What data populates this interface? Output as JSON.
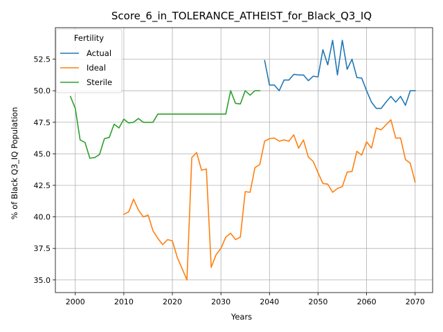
{
  "chart_data": {
    "type": "line",
    "title": "Score_6_in_TOLERANCE_ATHEIST_for_Black_Q3_IQ",
    "xlabel": "Years",
    "ylabel": "% of Black Q3_IQ Population",
    "xlim": [
      1995.9,
      2073.6
    ],
    "ylim": [
      34.0,
      55.0
    ],
    "xticks": [
      2000,
      2010,
      2020,
      2030,
      2040,
      2050,
      2060,
      2070
    ],
    "yticks": [
      35.0,
      37.5,
      40.0,
      42.5,
      45.0,
      47.5,
      50.0,
      52.5
    ],
    "xtick_labels": [
      "2000",
      "2010",
      "2020",
      "2030",
      "2040",
      "2050",
      "2060",
      "2070"
    ],
    "ytick_labels": [
      "35.0",
      "37.5",
      "40.0",
      "42.5",
      "45.0",
      "47.5",
      "50.0",
      "52.5"
    ],
    "grid": true,
    "legend": {
      "title": "Fertility",
      "placement": "upper-left"
    },
    "series": [
      {
        "name": "Actual",
        "color": "#1f77b4",
        "x": [
          2039,
          2040,
          2041,
          2042,
          2043,
          2044,
          2045,
          2046,
          2047,
          2048,
          2049,
          2050,
          2051,
          2052,
          2053,
          2054,
          2055,
          2056,
          2057,
          2058,
          2059,
          2060,
          2061,
          2062,
          2063,
          2064,
          2065,
          2066,
          2067,
          2068,
          2069,
          2070
        ],
        "y": [
          52.4,
          50.45,
          50.45,
          50.0,
          50.85,
          50.85,
          51.3,
          51.25,
          51.25,
          50.8,
          51.15,
          51.1,
          53.25,
          52.05,
          54.0,
          51.25,
          54.0,
          51.7,
          52.5,
          51.05,
          51.0,
          50.0,
          49.1,
          48.6,
          48.6,
          49.1,
          49.55,
          49.1,
          49.55,
          48.85,
          50.0,
          50.0
        ]
      },
      {
        "name": "Ideal",
        "color": "#ff7f0e",
        "x": [
          2010,
          2011,
          2012,
          2013,
          2014,
          2015,
          2016,
          2017,
          2018,
          2019,
          2020,
          2021,
          2022,
          2023,
          2024,
          2025,
          2026,
          2027,
          2028,
          2029,
          2030,
          2031,
          2032,
          2033,
          2034,
          2035,
          2036,
          2037,
          2038,
          2039,
          2040,
          2041,
          2042,
          2043,
          2044,
          2045,
          2046,
          2047,
          2048,
          2049,
          2050,
          2051,
          2052,
          2053,
          2054,
          2055,
          2056,
          2057,
          2058,
          2059,
          2060,
          2061,
          2062,
          2063,
          2064,
          2065,
          2066,
          2067,
          2068,
          2069,
          2070
        ],
        "y": [
          40.2,
          40.4,
          41.4,
          40.55,
          40.0,
          40.15,
          38.9,
          38.3,
          37.8,
          38.2,
          38.1,
          36.8,
          35.9,
          35.0,
          44.7,
          45.1,
          43.7,
          43.8,
          36.0,
          37.0,
          37.5,
          38.4,
          38.7,
          38.2,
          38.4,
          42.0,
          41.95,
          43.9,
          44.15,
          46.0,
          46.2,
          46.25,
          46.0,
          46.1,
          46.0,
          46.5,
          45.45,
          46.1,
          44.75,
          44.4,
          43.5,
          42.65,
          42.6,
          41.95,
          42.25,
          42.4,
          43.55,
          43.6,
          45.2,
          44.9,
          45.95,
          45.45,
          47.05,
          46.9,
          47.3,
          47.7,
          46.25,
          46.25,
          44.55,
          44.25,
          42.75
        ]
      },
      {
        "name": "Sterile",
        "color": "#2ca02c",
        "x": [
          1999,
          2000,
          2001,
          2002,
          2003,
          2004,
          2005,
          2006,
          2007,
          2008,
          2009,
          2010,
          2011,
          2012,
          2013,
          2014,
          2015,
          2016,
          2017,
          2018,
          2019,
          2020,
          2021,
          2022,
          2023,
          2024,
          2025,
          2026,
          2027,
          2028,
          2029,
          2030,
          2031,
          2032,
          2033,
          2034,
          2035,
          2036,
          2037,
          2038
        ],
        "y": [
          49.55,
          48.6,
          46.1,
          45.9,
          44.65,
          44.7,
          44.95,
          46.2,
          46.3,
          47.35,
          47.05,
          47.75,
          47.45,
          47.5,
          47.8,
          47.5,
          47.5,
          47.5,
          48.15,
          48.15,
          48.15,
          48.15,
          48.15,
          48.15,
          48.15,
          48.15,
          48.15,
          48.15,
          48.15,
          48.15,
          48.15,
          48.15,
          48.15,
          50.0,
          49.0,
          48.95,
          50.0,
          49.65,
          50.0,
          50.0
        ]
      }
    ]
  }
}
